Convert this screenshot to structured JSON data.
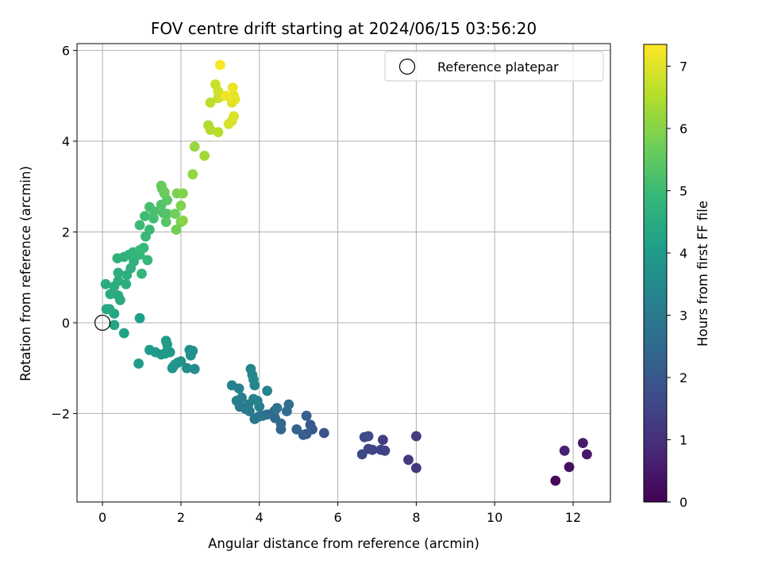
{
  "chart_data": {
    "type": "scatter",
    "title": "FOV centre drift starting at 2024/06/15 03:56:20",
    "xlabel": "Angular distance from reference (arcmin)",
    "ylabel": "Rotation from reference (arcmin)",
    "xlim": [
      -0.65,
      12.95
    ],
    "ylim": [
      -3.95,
      6.15
    ],
    "xticks": [
      0,
      2,
      4,
      6,
      8,
      10,
      12
    ],
    "yticks": [
      -2,
      0,
      2,
      4,
      6
    ],
    "grid": true,
    "legend": {
      "placement": "top-right",
      "entries": [
        "Reference platepar"
      ]
    },
    "reference_point": {
      "x": 0,
      "y": 0,
      "label": "Reference platepar"
    },
    "colorbar": {
      "label": "Hours from first FF file",
      "colormap": "viridis",
      "range": [
        0,
        7.35
      ],
      "ticks": [
        0,
        1,
        2,
        3,
        4,
        5,
        6,
        7
      ],
      "stops": [
        "#440154",
        "#482878",
        "#3e4a89",
        "#31688e",
        "#26828e",
        "#1f9e89",
        "#35b779",
        "#6ece58",
        "#b5de2b",
        "#fde725"
      ]
    },
    "points": [
      [
        11.55,
        -3.48,
        0.15
      ],
      [
        11.9,
        -3.18,
        0.3
      ],
      [
        12.35,
        -2.9,
        0.45
      ],
      [
        12.25,
        -2.65,
        0.55
      ],
      [
        11.78,
        -2.82,
        0.7
      ],
      [
        8.0,
        -3.2,
        1.2
      ],
      [
        7.8,
        -3.02,
        1.25
      ],
      [
        8.0,
        -2.5,
        1.3
      ],
      [
        7.15,
        -2.58,
        1.35
      ],
      [
        7.2,
        -2.82,
        1.4
      ],
      [
        7.1,
        -2.8,
        1.45
      ],
      [
        6.88,
        -2.8,
        1.5
      ],
      [
        6.78,
        -2.78,
        1.55
      ],
      [
        6.62,
        -2.9,
        1.6
      ],
      [
        6.68,
        -2.52,
        1.62
      ],
      [
        6.78,
        -2.5,
        1.65
      ],
      [
        5.65,
        -2.43,
        1.9
      ],
      [
        5.35,
        -2.35,
        2.0
      ],
      [
        5.3,
        -2.25,
        2.05
      ],
      [
        5.2,
        -2.45,
        2.1
      ],
      [
        5.12,
        -2.47,
        2.15
      ],
      [
        5.2,
        -2.05,
        2.2
      ],
      [
        4.95,
        -2.35,
        2.3
      ],
      [
        4.55,
        -2.35,
        2.4
      ],
      [
        4.55,
        -2.22,
        2.45
      ],
      [
        4.4,
        -2.1,
        2.5
      ],
      [
        4.38,
        -1.95,
        2.55
      ],
      [
        4.2,
        -2.02,
        2.6
      ],
      [
        4.7,
        -1.95,
        2.65
      ],
      [
        4.75,
        -1.8,
        2.7
      ],
      [
        4.45,
        -1.88,
        2.75
      ],
      [
        4.08,
        -2.05,
        2.8
      ],
      [
        3.98,
        -2.07,
        2.85
      ],
      [
        3.88,
        -2.12,
        2.9
      ],
      [
        3.75,
        -1.95,
        2.95
      ],
      [
        3.65,
        -1.9,
        3.0
      ],
      [
        3.5,
        -1.85,
        3.05
      ],
      [
        3.42,
        -1.72,
        3.1
      ],
      [
        3.55,
        -1.65,
        3.12
      ],
      [
        3.72,
        -1.8,
        3.15
      ],
      [
        3.85,
        -1.68,
        3.18
      ],
      [
        4.0,
        -1.85,
        3.2
      ],
      [
        3.95,
        -1.72,
        3.22
      ],
      [
        3.48,
        -1.45,
        3.25
      ],
      [
        3.3,
        -1.38,
        3.28
      ],
      [
        3.88,
        -1.38,
        3.3
      ],
      [
        4.2,
        -1.5,
        3.32
      ],
      [
        3.78,
        -1.02,
        3.35
      ],
      [
        3.82,
        -1.15,
        3.38
      ],
      [
        3.85,
        -1.25,
        3.4
      ],
      [
        2.35,
        -1.02,
        3.55
      ],
      [
        2.15,
        -1.0,
        3.6
      ],
      [
        2.3,
        -0.62,
        3.65
      ],
      [
        2.22,
        -0.6,
        3.68
      ],
      [
        2.25,
        -0.72,
        3.7
      ],
      [
        2.0,
        -0.85,
        3.72
      ],
      [
        1.92,
        -0.88,
        3.75
      ],
      [
        1.8,
        -0.97,
        3.78
      ],
      [
        1.78,
        -1.0,
        3.8
      ],
      [
        1.85,
        -0.92,
        3.82
      ],
      [
        1.65,
        -0.62,
        3.85
      ],
      [
        1.72,
        -0.65,
        3.88
      ],
      [
        1.6,
        -0.68,
        3.9
      ],
      [
        1.5,
        -0.7,
        3.92
      ],
      [
        1.35,
        -0.65,
        3.95
      ],
      [
        1.2,
        -0.6,
        3.97
      ],
      [
        1.62,
        -0.4,
        4.0
      ],
      [
        1.65,
        -0.48,
        4.02
      ],
      [
        0.92,
        -0.9,
        4.05
      ],
      [
        0.95,
        0.1,
        4.1
      ],
      [
        0.55,
        -0.23,
        4.2
      ],
      [
        0.3,
        -0.05,
        4.3
      ],
      [
        0.3,
        0.2,
        4.35
      ],
      [
        0.1,
        0.3,
        4.4
      ],
      [
        0.18,
        0.3,
        4.42
      ],
      [
        0.45,
        0.5,
        4.45
      ],
      [
        0.4,
        0.6,
        4.48
      ],
      [
        0.2,
        0.63,
        4.5
      ],
      [
        0.08,
        0.85,
        4.52
      ],
      [
        0.3,
        0.8,
        4.55
      ],
      [
        0.4,
        0.92,
        4.58
      ],
      [
        0.6,
        0.85,
        4.6
      ],
      [
        0.4,
        1.1,
        4.62
      ],
      [
        0.62,
        1.05,
        4.65
      ],
      [
        0.72,
        1.2,
        4.68
      ],
      [
        0.8,
        1.35,
        4.7
      ],
      [
        0.55,
        1.45,
        4.72
      ],
      [
        0.38,
        1.42,
        4.75
      ],
      [
        0.68,
        1.5,
        4.78
      ],
      [
        0.78,
        1.55,
        4.8
      ],
      [
        0.95,
        1.5,
        4.82
      ],
      [
        1.0,
        1.08,
        4.85
      ],
      [
        1.15,
        1.38,
        4.88
      ],
      [
        1.05,
        1.65,
        4.9
      ],
      [
        0.95,
        1.6,
        4.92
      ],
      [
        1.1,
        1.9,
        4.95
      ],
      [
        1.2,
        2.05,
        4.97
      ],
      [
        0.95,
        2.15,
        5.0
      ],
      [
        1.08,
        2.35,
        5.05
      ],
      [
        1.3,
        2.3,
        5.1
      ],
      [
        1.2,
        2.55,
        5.15
      ],
      [
        1.32,
        2.45,
        5.2
      ],
      [
        1.55,
        2.42,
        5.25
      ],
      [
        1.5,
        2.6,
        5.3
      ],
      [
        1.65,
        2.4,
        5.35
      ],
      [
        1.62,
        2.22,
        5.4
      ],
      [
        1.65,
        2.7,
        5.45
      ],
      [
        1.58,
        2.85,
        5.5
      ],
      [
        1.52,
        2.95,
        5.55
      ],
      [
        1.5,
        3.02,
        5.6
      ],
      [
        1.58,
        2.88,
        5.65
      ],
      [
        1.85,
        2.4,
        5.7
      ],
      [
        1.88,
        2.05,
        5.75
      ],
      [
        2.0,
        2.22,
        5.8
      ],
      [
        1.9,
        2.85,
        5.85
      ],
      [
        2.0,
        2.58,
        5.9
      ],
      [
        2.05,
        2.85,
        5.95
      ],
      [
        2.05,
        2.25,
        6.0
      ],
      [
        2.3,
        3.27,
        6.1
      ],
      [
        2.35,
        3.88,
        6.2
      ],
      [
        2.6,
        3.68,
        6.3
      ],
      [
        2.7,
        4.35,
        6.45
      ],
      [
        2.75,
        4.25,
        6.5
      ],
      [
        2.95,
        4.2,
        6.55
      ],
      [
        2.75,
        4.85,
        6.6
      ],
      [
        2.95,
        4.95,
        6.7
      ],
      [
        2.88,
        5.25,
        6.75
      ],
      [
        2.95,
        5.1,
        6.8
      ],
      [
        3.05,
        5.0,
        6.85
      ],
      [
        3.22,
        4.38,
        6.9
      ],
      [
        3.3,
        4.45,
        6.92
      ],
      [
        3.35,
        4.55,
        6.95
      ],
      [
        3.3,
        4.85,
        7.0
      ],
      [
        3.35,
        5.0,
        7.05
      ],
      [
        3.38,
        4.92,
        7.1
      ],
      [
        3.32,
        5.18,
        7.15
      ],
      [
        3.15,
        5.0,
        7.2
      ],
      [
        3.0,
        5.68,
        7.3
      ]
    ]
  }
}
